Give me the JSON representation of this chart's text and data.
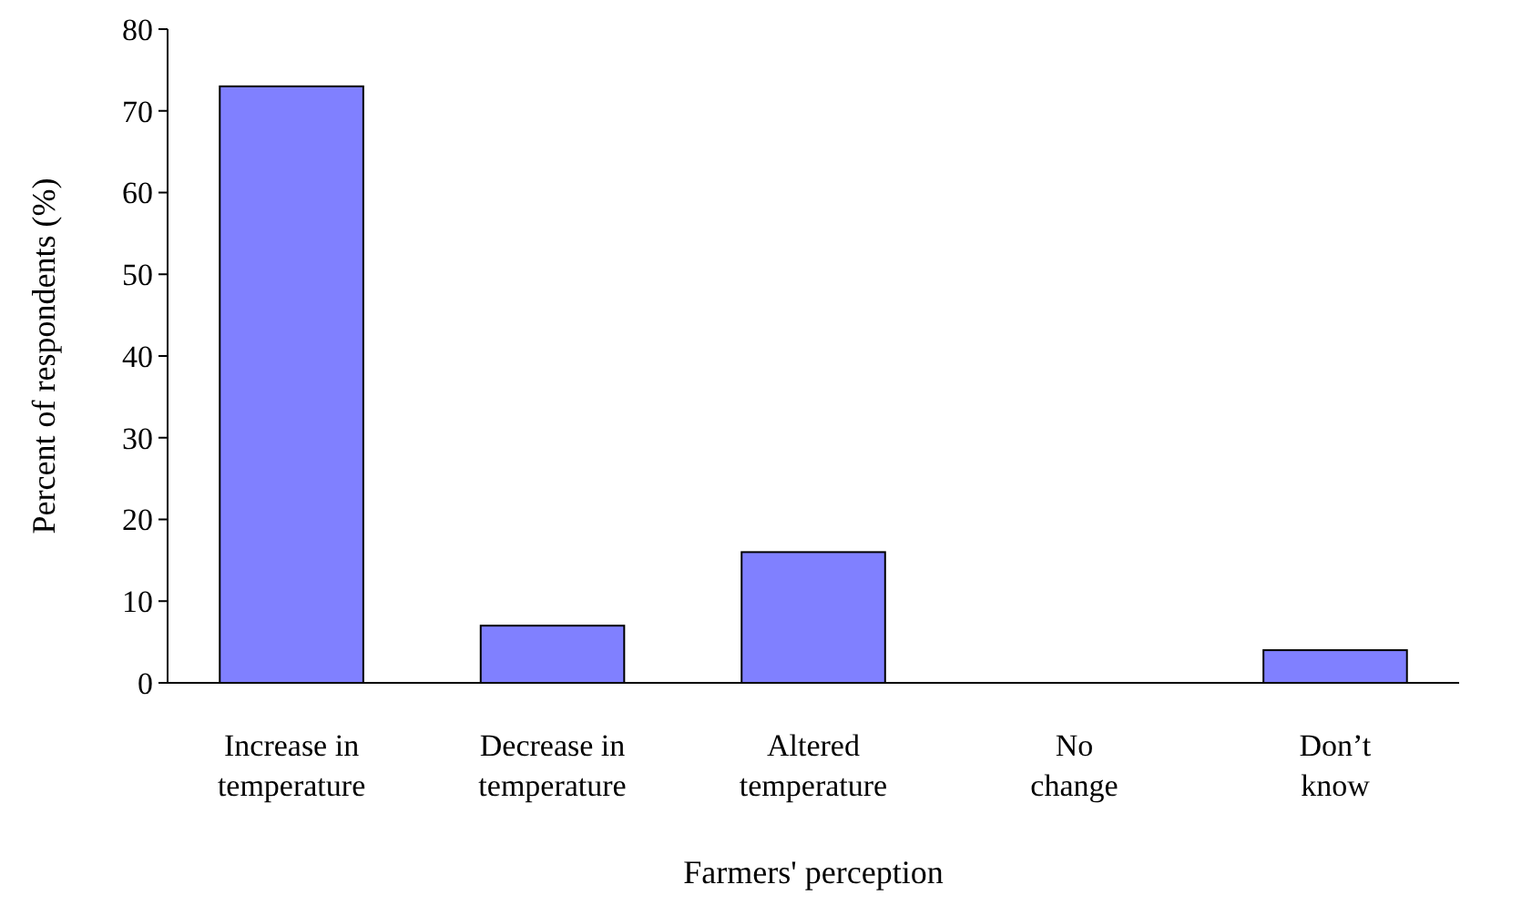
{
  "chart_data": {
    "type": "bar",
    "xlabel": "Farmers' perception",
    "ylabel": "Percent of respondents (%)",
    "categories": [
      "Increase in temperature",
      "Decrease in temperature",
      "Altered temperature",
      "No change",
      "Don’t know"
    ],
    "values": [
      73,
      7,
      16,
      0,
      4
    ],
    "color": "#8080ff",
    "ylim": [
      0,
      80
    ],
    "yticks": [
      0,
      10,
      20,
      30,
      40,
      50,
      60,
      70,
      80
    ]
  }
}
